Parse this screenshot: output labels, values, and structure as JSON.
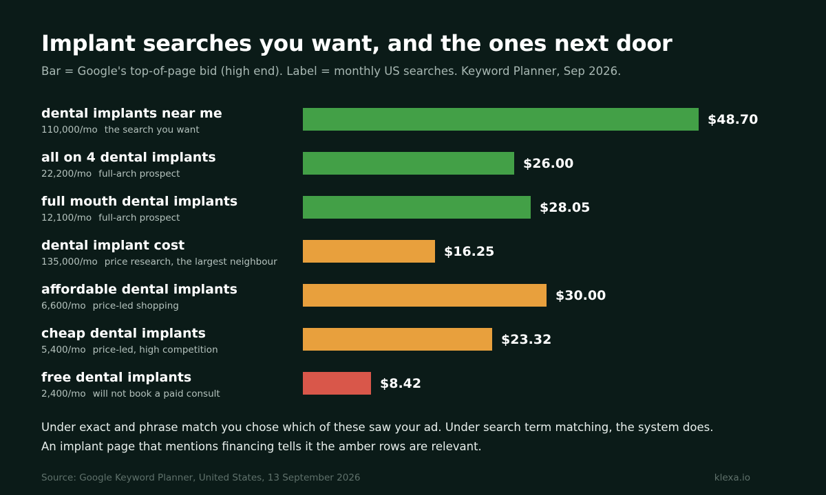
{
  "header": {
    "title": "Implant searches you want, and the ones next door",
    "subtitle": "Bar = Google's top-of-page bid (high end). Label = monthly US searches. Keyword Planner, Sep 2026."
  },
  "colors": {
    "background": "#0b1b18",
    "want": "#43a047",
    "neighbour": "#e8a03d",
    "avoid": "#d9574a"
  },
  "chart_data": {
    "type": "bar",
    "orientation": "horizontal",
    "xlim": [
      0,
      48.7
    ],
    "categories": [
      "dental implants near me",
      "all on 4 dental implants",
      "full mouth dental implants",
      "dental implant cost",
      "affordable dental implants",
      "cheap dental implants",
      "free dental implants"
    ],
    "values": [
      48.7,
      26.0,
      28.05,
      16.25,
      30.0,
      23.32,
      8.42
    ],
    "value_labels": [
      "$48.70",
      "$26.00",
      "$28.05",
      "$16.25",
      "$30.00",
      "$23.32",
      "$8.42"
    ],
    "searches": [
      "110,000/mo",
      "22,200/mo",
      "12,100/mo",
      "135,000/mo",
      "6,600/mo",
      "5,400/mo",
      "2,400/mo"
    ],
    "notes": [
      "the search you want",
      "full-arch prospect",
      "full-arch prospect",
      "price research, the largest neighbour",
      "price-led shopping",
      "price-led, high competition",
      "will not book a paid consult"
    ],
    "groups": [
      "want",
      "want",
      "want",
      "neighbour",
      "neighbour",
      "neighbour",
      "avoid"
    ]
  },
  "footnote": {
    "line1": "Under exact and phrase match you chose which of these saw your ad. Under search term matching, the system does.",
    "line2": "An implant page that mentions financing tells it the amber rows are relevant."
  },
  "footer": {
    "source": "Source: Google Keyword Planner, United States, 13 September 2026",
    "brand": "klexa.io"
  }
}
